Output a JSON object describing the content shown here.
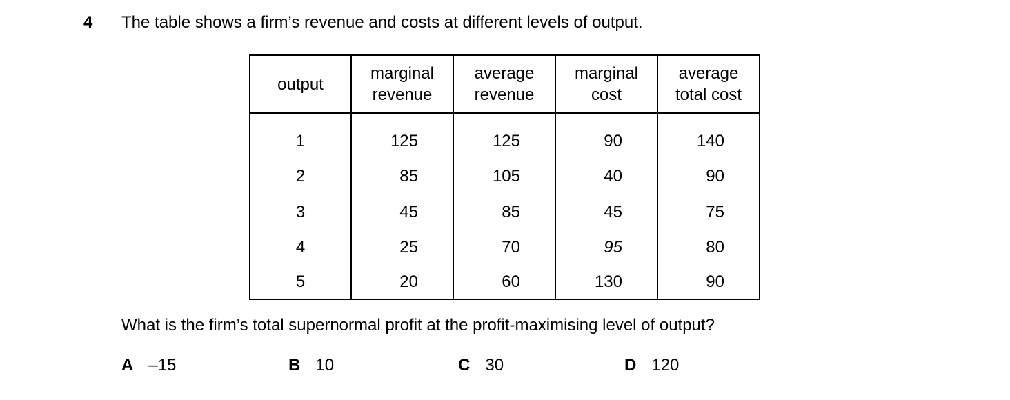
{
  "question_number": "4",
  "stem": "The table shows a firm’s revenue and costs at different levels of output.",
  "table": {
    "headers": [
      [
        "output"
      ],
      [
        "marginal",
        "revenue"
      ],
      [
        "average",
        "revenue"
      ],
      [
        "marginal",
        "cost"
      ],
      [
        "average",
        "total cost"
      ]
    ],
    "rows": [
      [
        "1",
        "125",
        "125",
        "90",
        "140"
      ],
      [
        "2",
        "85",
        "105",
        "40",
        "90"
      ],
      [
        "3",
        "45",
        "85",
        "45",
        "75"
      ],
      [
        "4",
        "25",
        "70",
        "95",
        "80"
      ],
      [
        "5",
        "20",
        "60",
        "130",
        "90"
      ]
    ]
  },
  "question": "What is the firm’s total supernormal profit at the profit-maximising level of output?",
  "options": [
    {
      "letter": "A",
      "value": "–15"
    },
    {
      "letter": "B",
      "value": "10"
    },
    {
      "letter": "C",
      "value": "30"
    },
    {
      "letter": "D",
      "value": "120"
    }
  ]
}
